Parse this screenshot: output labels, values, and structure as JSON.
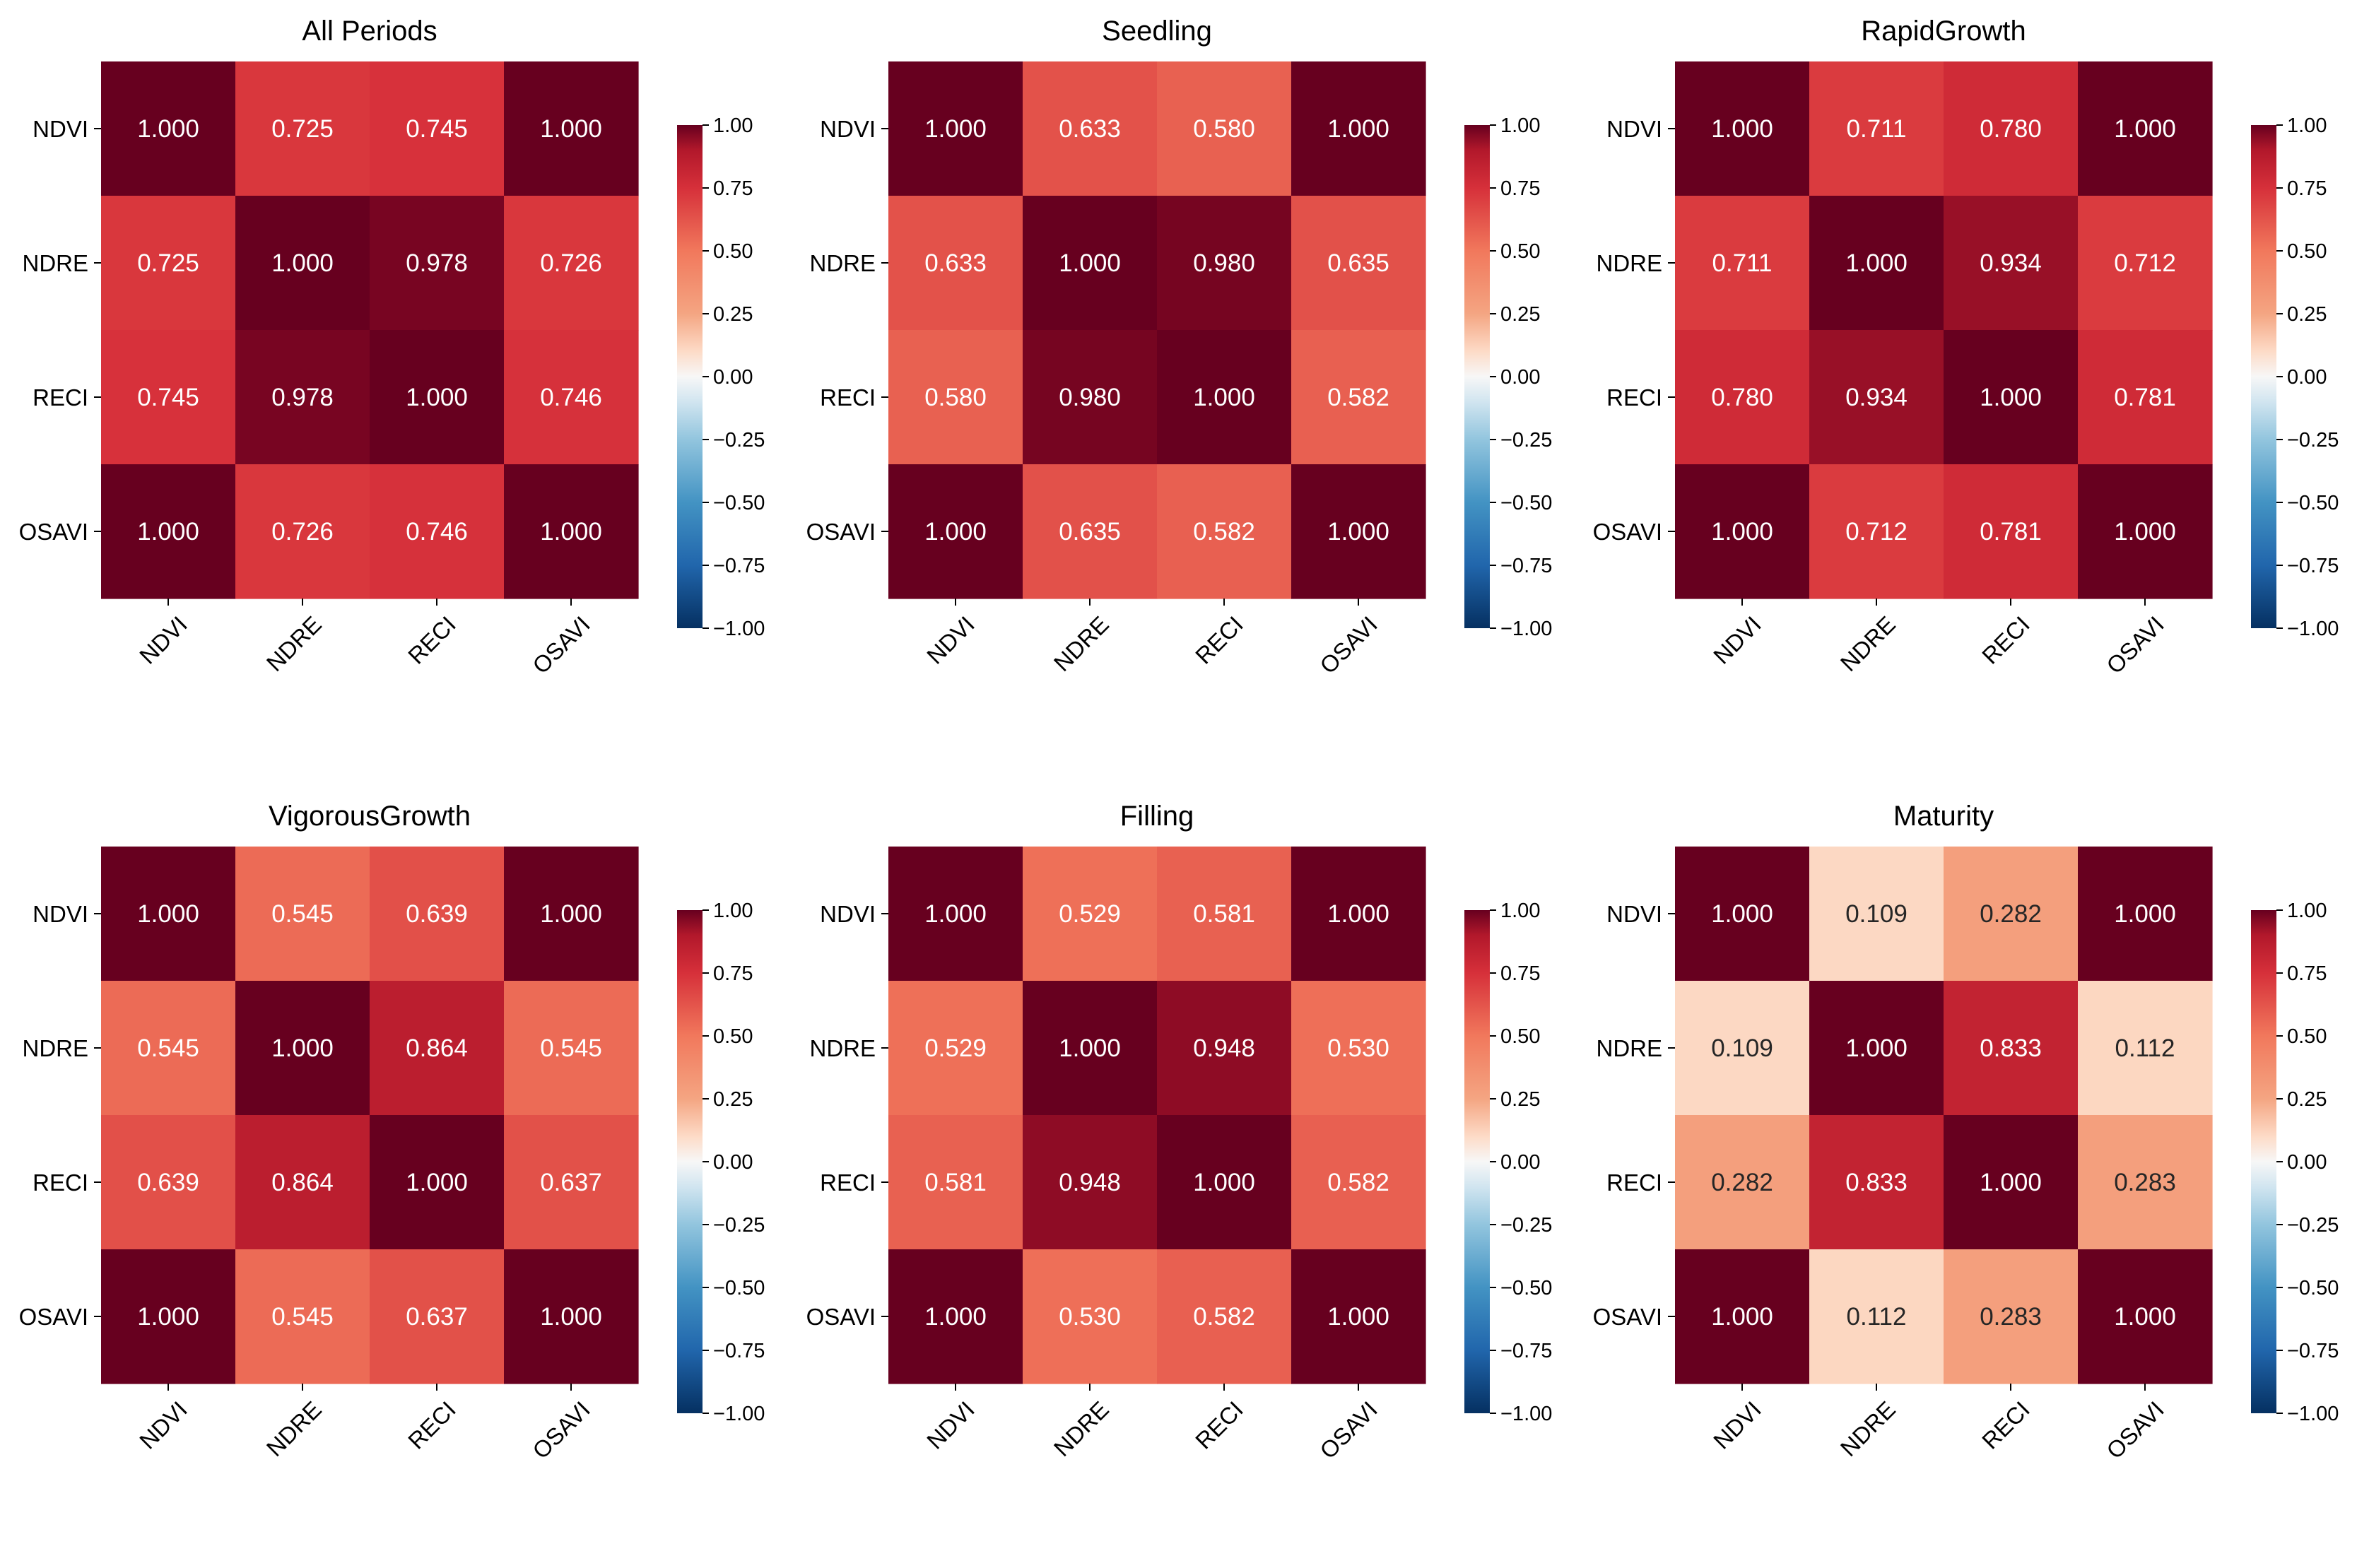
{
  "chart_data": [
    {
      "type": "heatmap",
      "title": "All Periods",
      "rows": [
        "NDVI",
        "NDRE",
        "RECI",
        "OSAVI"
      ],
      "columns": [
        "NDVI",
        "NDRE",
        "RECI",
        "OSAVI"
      ],
      "values": [
        [
          1.0,
          0.725,
          0.745,
          1.0
        ],
        [
          0.725,
          1.0,
          0.978,
          0.726
        ],
        [
          0.745,
          0.978,
          1.0,
          0.746
        ],
        [
          1.0,
          0.726,
          0.746,
          1.0
        ]
      ],
      "value_labels": [
        [
          "1.000",
          "0.725",
          "0.745",
          "1.000"
        ],
        [
          "0.725",
          "1.000",
          "0.978",
          "0.726"
        ],
        [
          "0.745",
          "0.978",
          "1.000",
          "0.746"
        ],
        [
          "1.000",
          "0.726",
          "0.746",
          "1.000"
        ]
      ],
      "vmin": -1,
      "vmax": 1,
      "colormap": "RdBu_r",
      "colorbar_ticks": [
        "1.00",
        "0.75",
        "0.50",
        "0.25",
        "0.00",
        "−0.25",
        "−0.50",
        "−0.75",
        "−1.00"
      ]
    },
    {
      "type": "heatmap",
      "title": "Seedling",
      "rows": [
        "NDVI",
        "NDRE",
        "RECI",
        "OSAVI"
      ],
      "columns": [
        "NDVI",
        "NDRE",
        "RECI",
        "OSAVI"
      ],
      "values": [
        [
          1.0,
          0.633,
          0.58,
          1.0
        ],
        [
          0.633,
          1.0,
          0.98,
          0.635
        ],
        [
          0.58,
          0.98,
          1.0,
          0.582
        ],
        [
          1.0,
          0.635,
          0.582,
          1.0
        ]
      ],
      "value_labels": [
        [
          "1.000",
          "0.633",
          "0.580",
          "1.000"
        ],
        [
          "0.633",
          "1.000",
          "0.980",
          "0.635"
        ],
        [
          "0.580",
          "0.980",
          "1.000",
          "0.582"
        ],
        [
          "1.000",
          "0.635",
          "0.582",
          "1.000"
        ]
      ],
      "vmin": -1,
      "vmax": 1,
      "colormap": "RdBu_r",
      "colorbar_ticks": [
        "1.00",
        "0.75",
        "0.50",
        "0.25",
        "0.00",
        "−0.25",
        "−0.50",
        "−0.75",
        "−1.00"
      ]
    },
    {
      "type": "heatmap",
      "title": "RapidGrowth",
      "rows": [
        "NDVI",
        "NDRE",
        "RECI",
        "OSAVI"
      ],
      "columns": [
        "NDVI",
        "NDRE",
        "RECI",
        "OSAVI"
      ],
      "values": [
        [
          1.0,
          0.711,
          0.78,
          1.0
        ],
        [
          0.711,
          1.0,
          0.934,
          0.712
        ],
        [
          0.78,
          0.934,
          1.0,
          0.781
        ],
        [
          1.0,
          0.712,
          0.781,
          1.0
        ]
      ],
      "value_labels": [
        [
          "1.000",
          "0.711",
          "0.780",
          "1.000"
        ],
        [
          "0.711",
          "1.000",
          "0.934",
          "0.712"
        ],
        [
          "0.780",
          "0.934",
          "1.000",
          "0.781"
        ],
        [
          "1.000",
          "0.712",
          "0.781",
          "1.000"
        ]
      ],
      "vmin": -1,
      "vmax": 1,
      "colormap": "RdBu_r",
      "colorbar_ticks": [
        "1.00",
        "0.75",
        "0.50",
        "0.25",
        "0.00",
        "−0.25",
        "−0.50",
        "−0.75",
        "−1.00"
      ]
    },
    {
      "type": "heatmap",
      "title": "VigorousGrowth",
      "rows": [
        "NDVI",
        "NDRE",
        "RECI",
        "OSAVI"
      ],
      "columns": [
        "NDVI",
        "NDRE",
        "RECI",
        "OSAVI"
      ],
      "values": [
        [
          1.0,
          0.545,
          0.639,
          1.0
        ],
        [
          0.545,
          1.0,
          0.864,
          0.545
        ],
        [
          0.639,
          0.864,
          1.0,
          0.637
        ],
        [
          1.0,
          0.545,
          0.637,
          1.0
        ]
      ],
      "value_labels": [
        [
          "1.000",
          "0.545",
          "0.639",
          "1.000"
        ],
        [
          "0.545",
          "1.000",
          "0.864",
          "0.545"
        ],
        [
          "0.639",
          "0.864",
          "1.000",
          "0.637"
        ],
        [
          "1.000",
          "0.545",
          "0.637",
          "1.000"
        ]
      ],
      "vmin": -1,
      "vmax": 1,
      "colormap": "RdBu_r",
      "colorbar_ticks": [
        "1.00",
        "0.75",
        "0.50",
        "0.25",
        "0.00",
        "−0.25",
        "−0.50",
        "−0.75",
        "−1.00"
      ]
    },
    {
      "type": "heatmap",
      "title": "Filling",
      "rows": [
        "NDVI",
        "NDRE",
        "RECI",
        "OSAVI"
      ],
      "columns": [
        "NDVI",
        "NDRE",
        "RECI",
        "OSAVI"
      ],
      "values": [
        [
          1.0,
          0.529,
          0.581,
          1.0
        ],
        [
          0.529,
          1.0,
          0.948,
          0.53
        ],
        [
          0.581,
          0.948,
          1.0,
          0.582
        ],
        [
          1.0,
          0.53,
          0.582,
          1.0
        ]
      ],
      "value_labels": [
        [
          "1.000",
          "0.529",
          "0.581",
          "1.000"
        ],
        [
          "0.529",
          "1.000",
          "0.948",
          "0.530"
        ],
        [
          "0.581",
          "0.948",
          "1.000",
          "0.582"
        ],
        [
          "1.000",
          "0.530",
          "0.582",
          "1.000"
        ]
      ],
      "vmin": -1,
      "vmax": 1,
      "colormap": "RdBu_r",
      "colorbar_ticks": [
        "1.00",
        "0.75",
        "0.50",
        "0.25",
        "0.00",
        "−0.25",
        "−0.50",
        "−0.75",
        "−1.00"
      ]
    },
    {
      "type": "heatmap",
      "title": "Maturity",
      "rows": [
        "NDVI",
        "NDRE",
        "RECI",
        "OSAVI"
      ],
      "columns": [
        "NDVI",
        "NDRE",
        "RECI",
        "OSAVI"
      ],
      "values": [
        [
          1.0,
          0.109,
          0.282,
          1.0
        ],
        [
          0.109,
          1.0,
          0.833,
          0.112
        ],
        [
          0.282,
          0.833,
          1.0,
          0.283
        ],
        [
          1.0,
          0.112,
          0.283,
          1.0
        ]
      ],
      "value_labels": [
        [
          "1.000",
          "0.109",
          "0.282",
          "1.000"
        ],
        [
          "0.109",
          "1.000",
          "0.833",
          "0.112"
        ],
        [
          "0.282",
          "0.833",
          "1.000",
          "0.283"
        ],
        [
          "1.000",
          "0.112",
          "0.283",
          "1.000"
        ]
      ],
      "vmin": -1,
      "vmax": 1,
      "colormap": "RdBu_r",
      "colorbar_ticks": [
        "1.00",
        "0.75",
        "0.50",
        "0.25",
        "0.00",
        "−0.25",
        "−0.50",
        "−0.75",
        "−1.00"
      ]
    }
  ],
  "colormap_stops": [
    {
      "v": -1.0,
      "color": "#053061"
    },
    {
      "v": -0.75,
      "color": "#2166ac"
    },
    {
      "v": -0.5,
      "color": "#4393c3"
    },
    {
      "v": -0.25,
      "color": "#92c5de"
    },
    {
      "v": -0.1,
      "color": "#d1e5f0"
    },
    {
      "v": 0.0,
      "color": "#f7f7f7"
    },
    {
      "v": 0.1,
      "color": "#fddbc7"
    },
    {
      "v": 0.25,
      "color": "#f4a582"
    },
    {
      "v": 0.5,
      "color": "#f1785c"
    },
    {
      "v": 0.75,
      "color": "#d6303a"
    },
    {
      "v": 0.9,
      "color": "#b2182b"
    },
    {
      "v": 1.0,
      "color": "#67001f"
    }
  ]
}
